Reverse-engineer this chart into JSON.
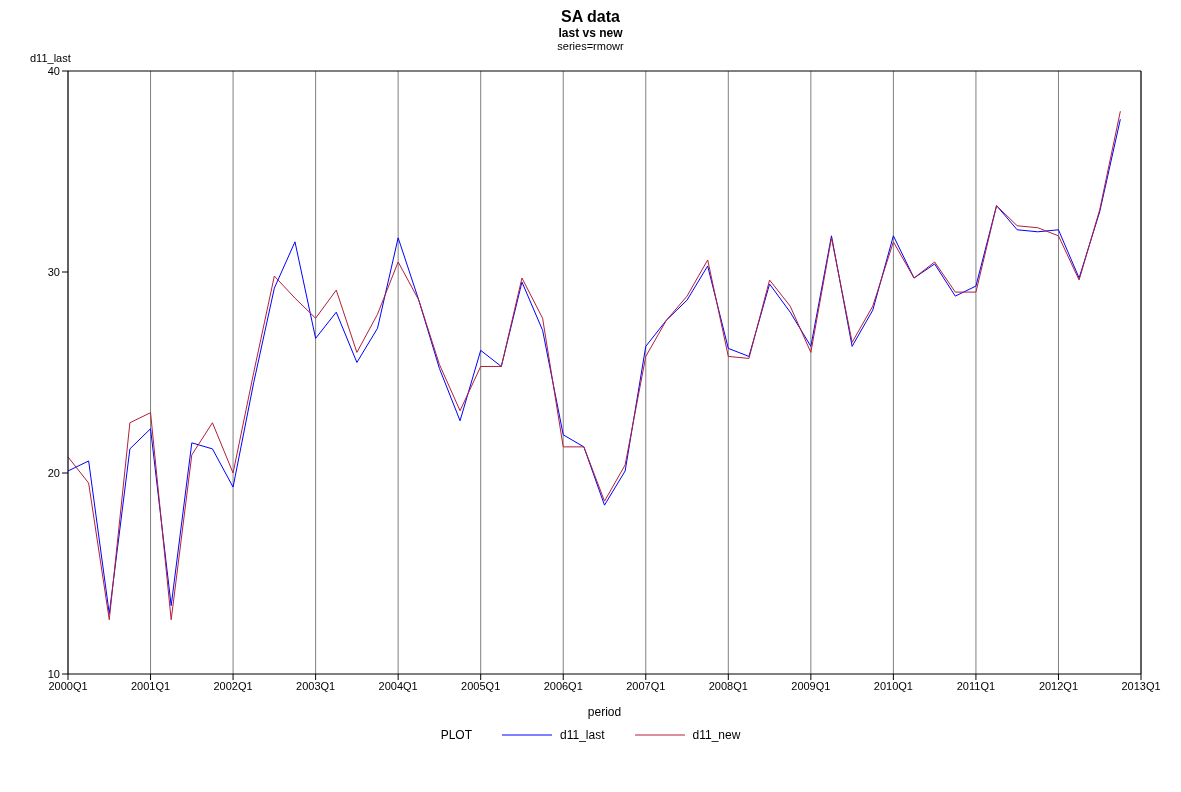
{
  "chart_data": {
    "type": "line",
    "title": "SA data",
    "subtitle": "last vs new",
    "annotations": [
      "series=rmowr"
    ],
    "xlabel": "period",
    "ylabel": "d11_last",
    "legend_title": "PLOT",
    "legend": "bottom",
    "grid": "x",
    "marker": "none",
    "categories": [
      "2000Q1",
      null,
      null,
      null,
      "2001Q1",
      null,
      null,
      null,
      "2002Q1",
      null,
      null,
      null,
      "2003Q1",
      null,
      null,
      null,
      "2004Q1",
      null,
      null,
      null,
      "2005Q1",
      null,
      null,
      null,
      "2006Q1",
      null,
      null,
      null,
      "2007Q1",
      null,
      null,
      null,
      "2008Q1",
      null,
      null,
      null,
      "2009Q1",
      null,
      null,
      null,
      "2010Q1",
      null,
      null,
      null,
      "2011Q1",
      null,
      null,
      null,
      "2012Q1",
      null,
      null,
      null,
      "2013Q1"
    ],
    "ylim": [
      10,
      40
    ],
    "yticks": [
      10,
      20,
      30,
      40
    ],
    "series": [
      {
        "name": "d11_last",
        "color": "#0000ff",
        "values": [
          20.1,
          20.6,
          13.0,
          21.2,
          22.2,
          13.4,
          21.5,
          21.2,
          19.3,
          24.5,
          29.2,
          31.5,
          26.7,
          28.0,
          25.5,
          27.2,
          31.7,
          28.6,
          25.2,
          22.6,
          26.1,
          25.3,
          29.5,
          27.1,
          21.9,
          21.3,
          18.4,
          20.1,
          26.3,
          27.6,
          28.6,
          30.3,
          26.2,
          25.8,
          29.4,
          28.0,
          26.3,
          31.8,
          26.3,
          28.1,
          31.8,
          29.7,
          30.4,
          28.8,
          29.3,
          33.3,
          32.1,
          32.0,
          32.1,
          29.7,
          33.0,
          37.6,
          null
        ]
      },
      {
        "name": "d11_new",
        "color": "#b0203a",
        "values": [
          20.8,
          19.5,
          12.7,
          22.5,
          23.0,
          12.7,
          20.9,
          22.5,
          20.0,
          25.0,
          29.8,
          28.7,
          27.7,
          29.1,
          26.0,
          27.9,
          30.5,
          28.6,
          25.4,
          23.1,
          25.3,
          25.3,
          29.7,
          27.7,
          21.3,
          21.3,
          18.6,
          20.4,
          25.8,
          27.6,
          28.8,
          30.6,
          25.8,
          25.7,
          29.6,
          28.3,
          26.0,
          31.7,
          26.5,
          28.3,
          31.5,
          29.7,
          30.5,
          29.0,
          29.0,
          33.3,
          32.3,
          32.2,
          31.8,
          29.6,
          33.1,
          38.0,
          null
        ]
      }
    ]
  }
}
